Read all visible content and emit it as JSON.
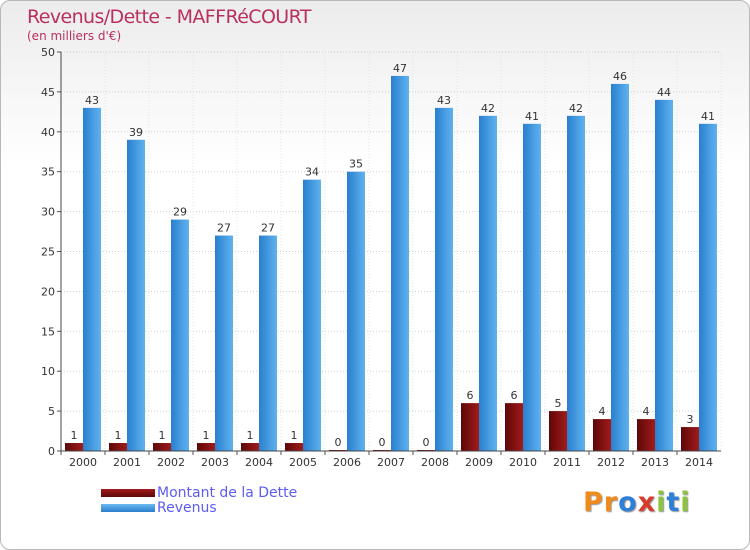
{
  "chart_data": {
    "type": "bar",
    "title": "Revenus/Dette - MAFFRéCOURT",
    "subtitle": "(en milliers d'€)",
    "categories": [
      "2000",
      "2001",
      "2002",
      "2003",
      "2004",
      "2005",
      "2006",
      "2007",
      "2008",
      "2009",
      "2010",
      "2011",
      "2012",
      "2013",
      "2014"
    ],
    "series": [
      {
        "name": "Montant de la Dette",
        "color": "#7a0f0f",
        "values": [
          1,
          1,
          1,
          1,
          1,
          1,
          0,
          0,
          0,
          6,
          6,
          5,
          4,
          4,
          3
        ]
      },
      {
        "name": "Revenus",
        "color": "#3a92dc",
        "values": [
          43,
          39,
          29,
          27,
          27,
          34,
          35,
          47,
          43,
          42,
          41,
          42,
          46,
          44,
          41
        ]
      }
    ],
    "ylim": [
      0,
      50
    ],
    "yticks": [
      0,
      5,
      10,
      15,
      20,
      25,
      30,
      35,
      40,
      45,
      50
    ],
    "xlabel": "",
    "ylabel": "",
    "grid": true,
    "legend_position": "bottom-left"
  },
  "logo": {
    "letters": [
      "P",
      "r",
      "o",
      "x",
      "i",
      "t",
      "i"
    ],
    "colors": [
      "#f08a1c",
      "#f08a1c",
      "#2e7fd8",
      "#d83a2c",
      "#8cc43c",
      "#2e7fd8",
      "#8cc43c"
    ]
  }
}
